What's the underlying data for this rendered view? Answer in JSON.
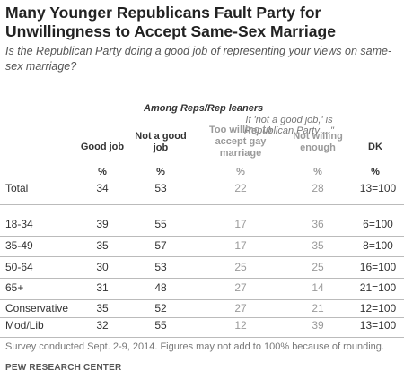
{
  "title": "Many Younger Republicans Fault Party for Unwillingness to Accept Same-Sex Marriage",
  "subtitle": "Is the Republican Party doing a good job of representing your views on same-sex marriage?",
  "table": {
    "group_header": "Among Reps/Rep leaners",
    "sub_header": "If 'not a good job,' is Republican Party ...\"",
    "columns": [
      [
        "Good job"
      ],
      [
        "Not a good",
        "job"
      ],
      [
        "Too willing to",
        "accept gay",
        "marriage"
      ],
      [
        "Not willing",
        "enough"
      ],
      [
        "DK"
      ]
    ],
    "pct_row": [
      "%",
      "%",
      "%",
      "%",
      "%"
    ],
    "rows": [
      {
        "label": "Total",
        "values": [
          "34",
          "53",
          "22",
          "28",
          "13=100"
        ]
      },
      {
        "label": "18-34",
        "values": [
          "39",
          "55",
          "17",
          "36",
          "6=100"
        ]
      },
      {
        "label": "35-49",
        "values": [
          "35",
          "57",
          "17",
          "35",
          "8=100"
        ]
      },
      {
        "label": "50-64",
        "values": [
          "30",
          "53",
          "25",
          "25",
          "16=100"
        ]
      },
      {
        "label": "65+",
        "values": [
          "31",
          "48",
          "27",
          "14",
          "21=100"
        ]
      },
      {
        "label": "Conservative",
        "values": [
          "35",
          "52",
          "27",
          "21",
          "12=100"
        ]
      },
      {
        "label": "Mod/Lib",
        "values": [
          "32",
          "55",
          "12",
          "39",
          "13=100"
        ]
      }
    ]
  },
  "note": "Survey conducted Sept. 2-9, 2014. Figures may not add to 100% because of rounding.",
  "source": "PEW RESEARCH CENTER",
  "colors": {
    "text": "#333333",
    "muted": "#9a9a9a",
    "rule": "#bbbbbb"
  }
}
